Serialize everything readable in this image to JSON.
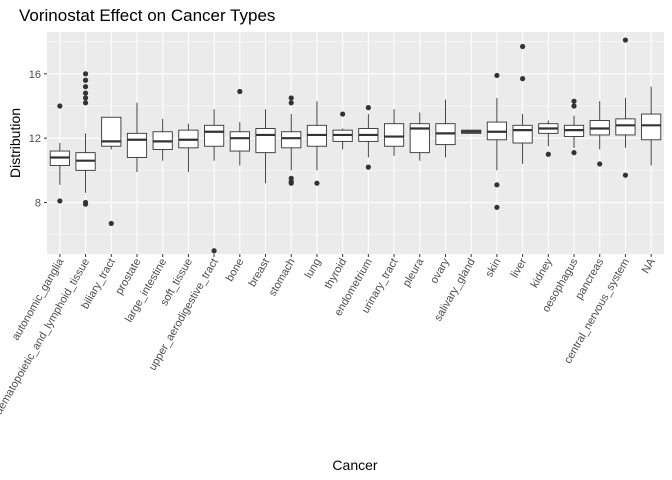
{
  "chart_data": {
    "type": "boxplot",
    "title": "Vorinostat Effect on Cancer Types",
    "xlabel": "Cancer",
    "ylabel": "Distribution",
    "ylim": [
      4.8,
      18.6
    ],
    "yticks": [
      8,
      12,
      16
    ],
    "grid": true,
    "legend": "none",
    "colors": {
      "panel": "#ebebeb",
      "grid": "#ffffff",
      "box_fill": "#ffffff",
      "box_line": "#333333",
      "point": "#333333"
    },
    "categories": [
      {
        "name": "autonomic_ganglia",
        "min": 9.1,
        "q1": 10.3,
        "median": 10.8,
        "q3": 11.2,
        "max": 11.7,
        "outliers": [
          14.0,
          8.1
        ]
      },
      {
        "name": "haematopoietic_and_lymphoid_tissue",
        "min": 8.6,
        "q1": 10.0,
        "median": 10.6,
        "q3": 11.1,
        "max": 12.3,
        "outliers": [
          16.0,
          15.6,
          15.2,
          14.8,
          14.5,
          14.2,
          8.0,
          7.9
        ]
      },
      {
        "name": "biliary_tract",
        "min": 11.3,
        "q1": 11.5,
        "median": 11.8,
        "q3": 13.3,
        "max": 13.3,
        "outliers": [
          6.7
        ]
      },
      {
        "name": "prostate",
        "min": 9.9,
        "q1": 10.8,
        "median": 11.9,
        "q3": 12.3,
        "max": 14.2,
        "outliers": []
      },
      {
        "name": "large_intestine",
        "min": 10.6,
        "q1": 11.3,
        "median": 11.8,
        "q3": 12.4,
        "max": 13.2,
        "outliers": []
      },
      {
        "name": "soft_tissue",
        "min": 9.9,
        "q1": 11.4,
        "median": 11.9,
        "q3": 12.5,
        "max": 12.9,
        "outliers": []
      },
      {
        "name": "upper_aerodigestive_tract",
        "min": 10.6,
        "q1": 11.5,
        "median": 12.4,
        "q3": 12.8,
        "max": 13.8,
        "outliers": [
          5.0
        ]
      },
      {
        "name": "bone",
        "min": 10.3,
        "q1": 11.2,
        "median": 12.0,
        "q3": 12.4,
        "max": 13.0,
        "outliers": [
          14.9
        ]
      },
      {
        "name": "breast",
        "min": 9.2,
        "q1": 11.1,
        "median": 12.2,
        "q3": 12.6,
        "max": 13.8,
        "outliers": []
      },
      {
        "name": "stomach",
        "min": 10.0,
        "q1": 11.4,
        "median": 12.0,
        "q3": 12.4,
        "max": 13.5,
        "outliers": [
          14.5,
          14.2,
          9.5,
          9.3,
          9.2
        ]
      },
      {
        "name": "lung",
        "min": 10.0,
        "q1": 11.5,
        "median": 12.2,
        "q3": 12.8,
        "max": 14.3,
        "outliers": [
          9.2
        ]
      },
      {
        "name": "thyroid",
        "min": 11.3,
        "q1": 11.8,
        "median": 12.2,
        "q3": 12.5,
        "max": 12.6,
        "outliers": [
          13.5
        ]
      },
      {
        "name": "endometrium",
        "min": 10.8,
        "q1": 11.8,
        "median": 12.2,
        "q3": 12.6,
        "max": 13.5,
        "outliers": [
          13.9,
          10.2
        ]
      },
      {
        "name": "urinary_tract",
        "min": 10.9,
        "q1": 11.5,
        "median": 12.1,
        "q3": 12.9,
        "max": 13.8,
        "outliers": []
      },
      {
        "name": "pleura",
        "min": 10.6,
        "q1": 11.1,
        "median": 12.6,
        "q3": 12.9,
        "max": 13.6,
        "outliers": []
      },
      {
        "name": "ovary",
        "min": 10.8,
        "q1": 11.6,
        "median": 12.3,
        "q3": 12.9,
        "max": 14.4,
        "outliers": []
      },
      {
        "name": "salivary_gland",
        "min": 12.3,
        "q1": 12.3,
        "median": 12.4,
        "q3": 12.5,
        "max": 12.5,
        "outliers": []
      },
      {
        "name": "skin",
        "min": 10.0,
        "q1": 11.9,
        "median": 12.4,
        "q3": 13.0,
        "max": 14.5,
        "outliers": [
          15.9,
          9.1,
          7.7
        ]
      },
      {
        "name": "liver",
        "min": 10.4,
        "q1": 11.7,
        "median": 12.5,
        "q3": 12.8,
        "max": 13.5,
        "outliers": [
          17.7,
          15.7
        ]
      },
      {
        "name": "kidney",
        "min": 11.5,
        "q1": 12.3,
        "median": 12.6,
        "q3": 12.9,
        "max": 13.1,
        "outliers": [
          11.0
        ]
      },
      {
        "name": "oesophagus",
        "min": 11.4,
        "q1": 12.1,
        "median": 12.5,
        "q3": 12.8,
        "max": 13.4,
        "outliers": [
          14.3,
          14.0,
          11.1
        ]
      },
      {
        "name": "pancreas",
        "min": 11.3,
        "q1": 12.2,
        "median": 12.6,
        "q3": 13.1,
        "max": 14.3,
        "outliers": [
          10.4
        ]
      },
      {
        "name": "central_nervous_system",
        "min": 11.4,
        "q1": 12.2,
        "median": 12.8,
        "q3": 13.2,
        "max": 14.5,
        "outliers": [
          18.1,
          9.7
        ]
      },
      {
        "name": "NA",
        "min": 10.3,
        "q1": 11.9,
        "median": 12.8,
        "q3": 13.5,
        "max": 15.2,
        "outliers": []
      }
    ]
  }
}
